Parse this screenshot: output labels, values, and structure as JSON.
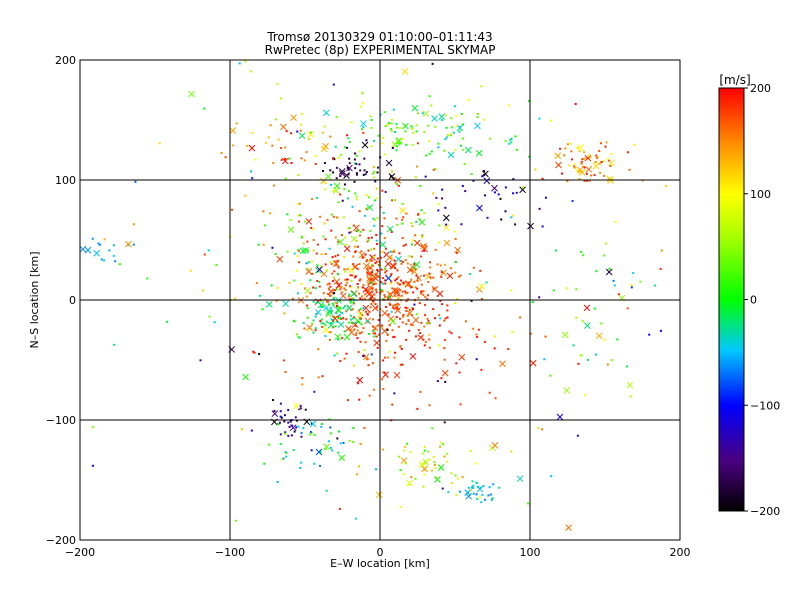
{
  "chart_data": {
    "type": "scatter",
    "title": "Tromsø 20130329 01:10:00–01:11:43",
    "subtitle": "RwPretec (8p) EXPERIMENTAL SKYMAP",
    "xlabel": "E–W location [km]",
    "ylabel": "N–S location [km]",
    "xlim": [
      -200,
      200
    ],
    "ylim": [
      -200,
      200
    ],
    "xticks": [
      -200,
      -100,
      0,
      100,
      200
    ],
    "yticks": [
      -200,
      -100,
      0,
      100,
      200
    ],
    "grid": true,
    "colorbar": {
      "label": "[m/s]",
      "range": [
        -200,
        200
      ],
      "ticks": [
        -200,
        -100,
        0,
        100,
        200
      ]
    },
    "clusters": [
      {
        "cx": 0,
        "cy": 10,
        "sx": 25,
        "sy": 25,
        "n": 420,
        "vmin": 150,
        "vmax": 200
      },
      {
        "cx": -20,
        "cy": 50,
        "sx": 35,
        "sy": 40,
        "n": 260,
        "vmin": -50,
        "vmax": 200
      },
      {
        "cx": -30,
        "cy": -15,
        "sx": 12,
        "sy": 10,
        "n": 90,
        "vmin": -50,
        "vmax": 20
      },
      {
        "cx": 30,
        "cy": 140,
        "sx": 40,
        "sy": 12,
        "n": 120,
        "vmin": -50,
        "vmax": 100
      },
      {
        "cx": -15,
        "cy": 110,
        "sx": 12,
        "sy": 8,
        "n": 45,
        "vmin": -200,
        "vmax": -150
      },
      {
        "cx": 135,
        "cy": 115,
        "sx": 15,
        "sy": 8,
        "n": 70,
        "vmin": 100,
        "vmax": 200
      },
      {
        "cx": -60,
        "cy": -100,
        "sx": 8,
        "sy": 8,
        "n": 35,
        "vmin": -200,
        "vmax": -100
      },
      {
        "cx": -45,
        "cy": -120,
        "sx": 15,
        "sy": 12,
        "n": 45,
        "vmin": -80,
        "vmax": 40
      },
      {
        "cx": 35,
        "cy": -140,
        "sx": 20,
        "sy": 12,
        "n": 55,
        "vmin": 0,
        "vmax": 150
      },
      {
        "cx": 70,
        "cy": -160,
        "sx": 10,
        "sy": 6,
        "n": 30,
        "vmin": -70,
        "vmax": -20
      },
      {
        "cx": -185,
        "cy": 40,
        "sx": 10,
        "sy": 5,
        "n": 14,
        "vmin": -70,
        "vmax": -40
      },
      {
        "cx": -60,
        "cy": 130,
        "sx": 25,
        "sy": 15,
        "n": 40,
        "vmin": 100,
        "vmax": 200
      },
      {
        "cx": 70,
        "cy": 90,
        "sx": 20,
        "sy": 15,
        "n": 35,
        "vmin": -200,
        "vmax": -100
      },
      {
        "cx": 150,
        "cy": -20,
        "sx": 25,
        "sy": 30,
        "n": 40,
        "vmin": -50,
        "vmax": 200
      },
      {
        "cx": 20,
        "cy": -40,
        "sx": 50,
        "sy": 35,
        "n": 90,
        "vmin": 150,
        "vmax": 200
      },
      {
        "cx": 0,
        "cy": 0,
        "sx": 110,
        "sy": 110,
        "n": 160,
        "vmin": -200,
        "vmax": 200
      }
    ]
  }
}
